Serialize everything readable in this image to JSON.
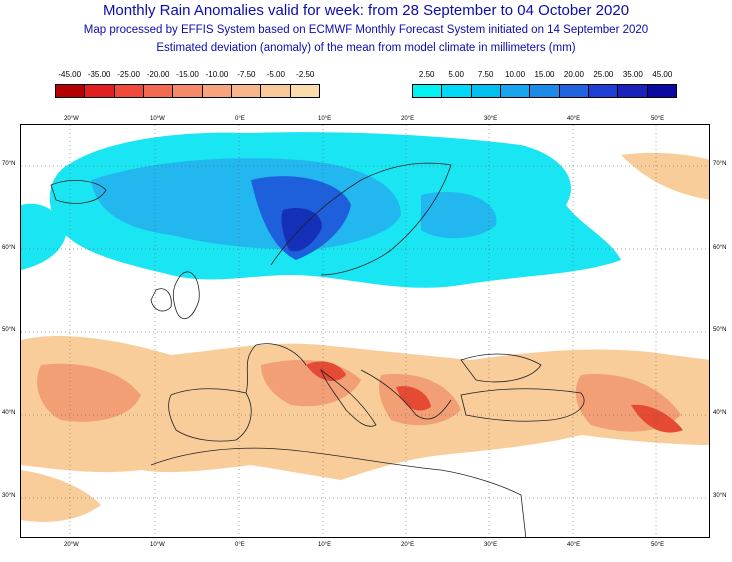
{
  "header": {
    "title": "Monthly Rain Anomalies valid for week: from 28 September to 04 October 2020",
    "subtitle": "Map processed by EFFIS System based on ECMWF Monthly Forecast System initiated on 14 September 2020",
    "description": "Estimated deviation (anomaly) of the mean from model climate in millimeters (mm)"
  },
  "legend_negative": {
    "labels": [
      "-45.00",
      "-35.00",
      "-25.00",
      "-20.00",
      "-15.00",
      "-10.00",
      "-7.50",
      "-5.00",
      "-2.50"
    ],
    "colors": [
      "#b30000",
      "#e02020",
      "#ef4a3a",
      "#f36a52",
      "#f58a68",
      "#f7a37e",
      "#f8b68c",
      "#fac99a",
      "#fbdcac"
    ]
  },
  "legend_positive": {
    "labels": [
      "2.50",
      "5.00",
      "7.50",
      "10.00",
      "15.00",
      "20.00",
      "25.00",
      "35.00",
      "45.00"
    ],
    "colors": [
      "#00f2f2",
      "#00d8f5",
      "#00c0f0",
      "#18a4ef",
      "#1e8ae8",
      "#2064e0",
      "#1e3ed4",
      "#1a22bc",
      "#0a0aa0"
    ]
  },
  "map": {
    "lon_labels": [
      "20°W",
      "10°W",
      "0°E",
      "10°E",
      "20°E",
      "30°E",
      "40°E",
      "50°E"
    ],
    "lat_labels": [
      "70°N",
      "60°N",
      "50°N",
      "40°N",
      "30°N"
    ],
    "palette": {
      "dry_light": "#f8cd9a",
      "dry_mid": "#f39f76",
      "dry_strong": "#e54a35",
      "wet_light": "#19e6f2",
      "wet_mid": "#22b8ef",
      "wet_strong": "#1e60dc",
      "wet_deep": "#1530b8"
    }
  }
}
